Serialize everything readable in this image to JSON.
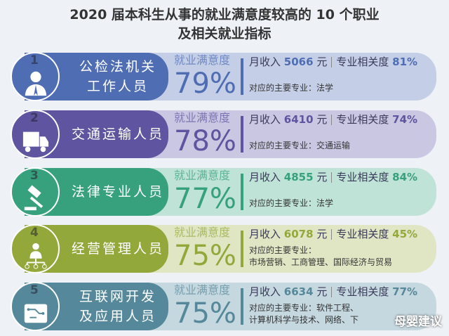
{
  "title_line1": "2020 届本科生从事的就业满意度较高的 10 个职业",
  "title_line2": "及相关就业指标",
  "sat_label": "就业满意度",
  "income_label": "月收入",
  "yuan": "元",
  "relevance_label": "专业相关度",
  "watermark": "母婴建议",
  "rows": [
    {
      "num": "1",
      "job1": "公检法机关",
      "job2": "工作人员",
      "sat": "79%",
      "income": "5066",
      "rel": "81%",
      "major1": "对应的主要专业：法学",
      "major2": "",
      "icon": "person-icon",
      "dark": "#4f6db3",
      "light": "#c4cee7"
    },
    {
      "num": "2",
      "job1": "交通运输人员",
      "job2": "",
      "sat": "78%",
      "income": "6410",
      "rel": "74%",
      "major1": "对应的主要专业：交通运输",
      "major2": "",
      "icon": "truck-icon",
      "dark": "#5e549f",
      "light": "#cac7e3"
    },
    {
      "num": "3",
      "job1": "法律专业人员",
      "job2": "",
      "sat": "77%",
      "income": "4855",
      "rel": "84%",
      "major1": "对应的主要专业：法学",
      "major2": "",
      "icon": "gavel-icon",
      "dark": "#37a07c",
      "light": "#bfe3d7"
    },
    {
      "num": "4",
      "job1": "经营管理人员",
      "job2": "",
      "sat": "75%",
      "income": "6078",
      "rel": "45%",
      "major1": "对应的主要专业：",
      "major2": "市场营销、工商管理、国际经济与贸易",
      "icon": "manager-icon",
      "dark": "#93a83b",
      "light": "#e0e6c4"
    },
    {
      "num": "5",
      "job1": "互联网开发",
      "job2": "及应用人员",
      "sat": "75%",
      "income": "6634",
      "rel": "77%",
      "major1": "对应的主要专业：软件工程、",
      "major2": "计算机科学与技术、网络、下",
      "icon": "circuit-icon",
      "dark": "#55889a",
      "light": "#c5d7df"
    }
  ]
}
